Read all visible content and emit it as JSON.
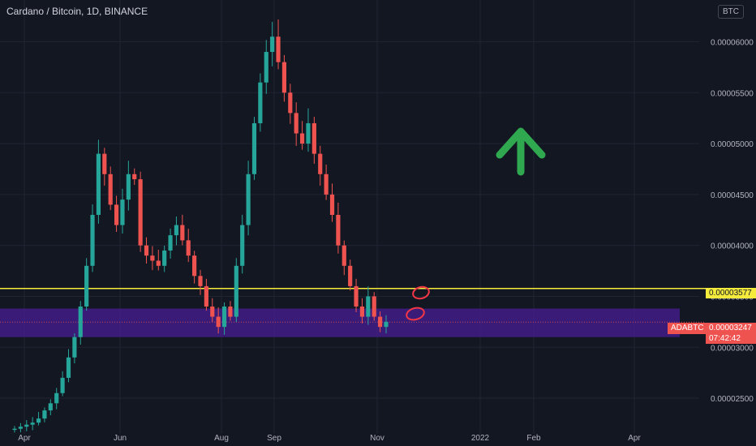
{
  "header": {
    "title": "Cardano / Bitcoin, 1D, BINANCE",
    "currency_badge": "BTC"
  },
  "price_tags": {
    "horizontal_line_value": "0.00003577",
    "symbol": "ADABTC",
    "last_price": "0.00003247",
    "countdown": "07:42:42"
  },
  "colors": {
    "background": "#131722",
    "up": "#26a69a",
    "down": "#ef5350",
    "line": "#f5eb3d",
    "zone": "#4a1d96",
    "arrow": "#2fa84f",
    "annotation": "#f23645"
  },
  "chart_data": {
    "type": "candlestick",
    "x_ticks": [
      "Apr",
      "Jun",
      "Aug",
      "Sep",
      "Nov",
      "2022",
      "Feb",
      "Apr"
    ],
    "y_ticks": [
      "0.00002500",
      "0.00003000",
      "0.00003500",
      "0.00004000",
      "0.00004500",
      "0.00005000",
      "0.00005500",
      "0.00006000"
    ],
    "y_range": [
      2.15e-05,
      6.41e-05
    ],
    "horizontal_line": 3.577e-05,
    "zone": [
      3.1e-05,
      3.38e-05
    ],
    "current_price": 3.247e-05,
    "grid": true,
    "legend": "none",
    "series": {
      "close": [
        2.2e-05,
        2.22e-05,
        2.24e-05,
        2.26e-05,
        2.3e-05,
        2.38e-05,
        2.45e-05,
        2.55e-05,
        2.7e-05,
        2.9e-05,
        3.1e-05,
        3.4e-05,
        3.8e-05,
        4.3e-05,
        4.9e-05,
        4.7e-05,
        4.4e-05,
        4.2e-05,
        4.45e-05,
        4.7e-05,
        4.65e-05,
        4e-05,
        3.9e-05,
        3.85e-05,
        3.8e-05,
        3.95e-05,
        4.1e-05,
        4.2e-05,
        4.05e-05,
        3.9e-05,
        3.7e-05,
        3.6e-05,
        3.4e-05,
        3.3e-05,
        3.2e-05,
        3.4e-05,
        3.3e-05,
        3.8e-05,
        4.2e-05,
        4.7e-05,
        5.2e-05,
        5.6e-05,
        5.9e-05,
        6.05e-05,
        5.8e-05,
        5.5e-05,
        5.3e-05,
        5.1e-05,
        5e-05,
        5.2e-05,
        4.9e-05,
        4.7e-05,
        4.5e-05,
        4.3e-05,
        4e-05,
        3.8e-05,
        3.6e-05,
        3.4e-05,
        3.3e-05,
        3.5e-05,
        3.3e-05,
        3.2e-05,
        3.25e-05
      ]
    }
  }
}
